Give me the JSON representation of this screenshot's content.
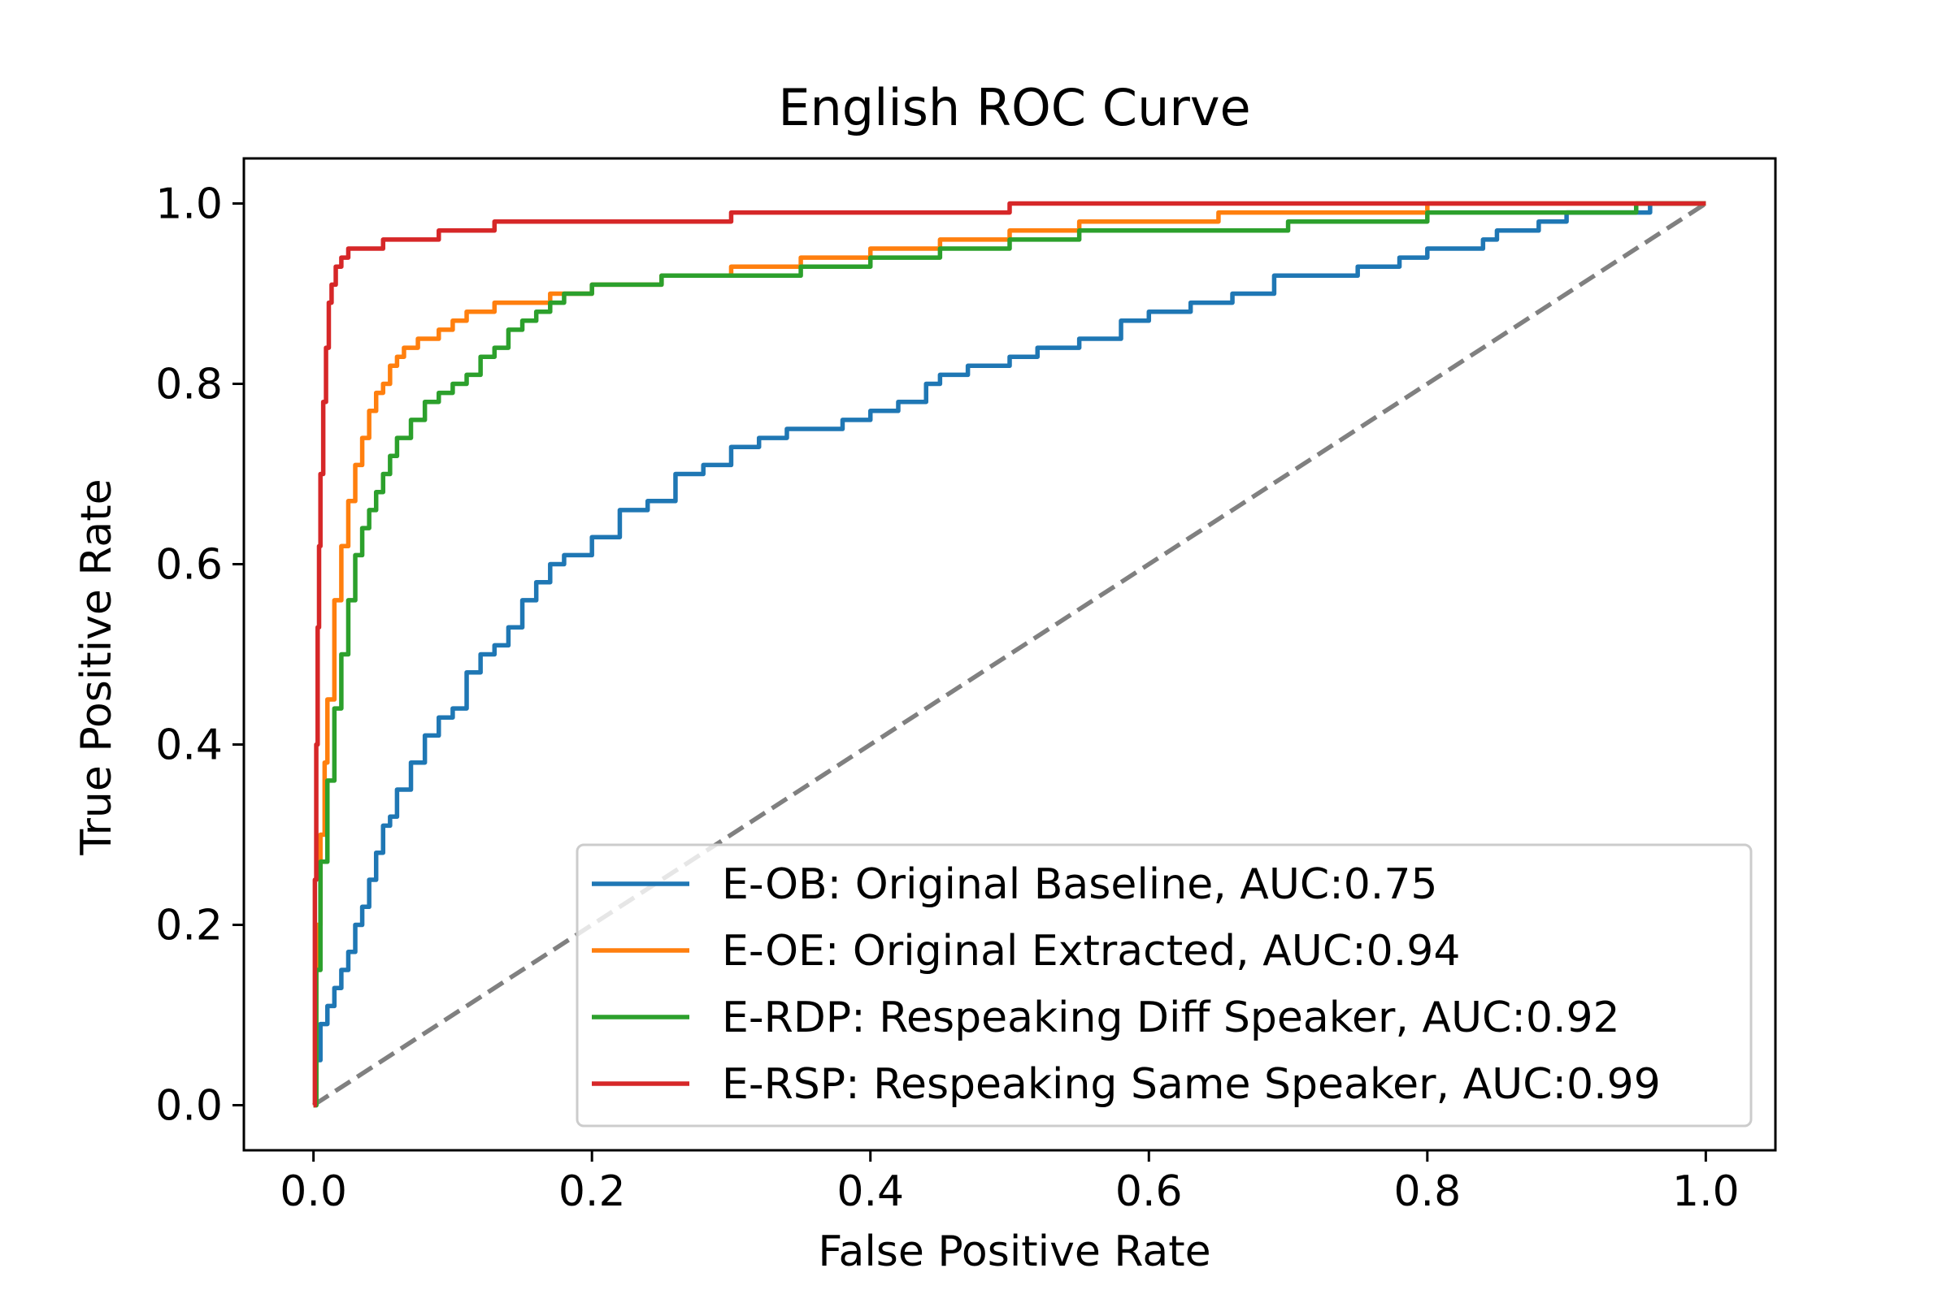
{
  "chart_data": {
    "type": "line",
    "title": "English ROC Curve",
    "xlabel": "False Positive Rate",
    "ylabel": "True Positive Rate",
    "xlim": [
      -0.05,
      1.05
    ],
    "ylim": [
      -0.05,
      1.05
    ],
    "xticks": [
      "0.0",
      "0.2",
      "0.4",
      "0.6",
      "0.8",
      "1.0"
    ],
    "yticks": [
      "0.0",
      "0.2",
      "0.4",
      "0.6",
      "0.8",
      "1.0"
    ],
    "grid": false,
    "legend_position": "lower-right",
    "diagonal": {
      "x": [
        0,
        1
      ],
      "y": [
        0,
        1
      ],
      "color": "#808080",
      "style": "dashed"
    },
    "series": [
      {
        "name": "E-OB: Original Baseline, AUC:0.75",
        "color": "#1f77b4",
        "x": [
          0.0,
          0.002,
          0.005,
          0.01,
          0.015,
          0.02,
          0.025,
          0.03,
          0.035,
          0.04,
          0.045,
          0.05,
          0.055,
          0.06,
          0.07,
          0.08,
          0.09,
          0.1,
          0.11,
          0.12,
          0.13,
          0.14,
          0.15,
          0.16,
          0.17,
          0.18,
          0.2,
          0.22,
          0.24,
          0.26,
          0.28,
          0.3,
          0.32,
          0.34,
          0.36,
          0.38,
          0.4,
          0.42,
          0.44,
          0.45,
          0.47,
          0.5,
          0.52,
          0.55,
          0.58,
          0.6,
          0.63,
          0.66,
          0.69,
          0.72,
          0.75,
          0.78,
          0.8,
          0.82,
          0.84,
          0.85,
          0.88,
          0.9,
          0.93,
          0.96,
          1.0
        ],
        "y": [
          0.0,
          0.05,
          0.09,
          0.11,
          0.13,
          0.15,
          0.17,
          0.2,
          0.22,
          0.25,
          0.28,
          0.31,
          0.32,
          0.35,
          0.38,
          0.41,
          0.43,
          0.44,
          0.48,
          0.5,
          0.51,
          0.53,
          0.56,
          0.58,
          0.6,
          0.61,
          0.63,
          0.66,
          0.67,
          0.7,
          0.71,
          0.73,
          0.74,
          0.75,
          0.75,
          0.76,
          0.77,
          0.78,
          0.8,
          0.81,
          0.82,
          0.83,
          0.84,
          0.85,
          0.87,
          0.88,
          0.89,
          0.9,
          0.92,
          0.92,
          0.93,
          0.94,
          0.95,
          0.95,
          0.96,
          0.97,
          0.98,
          0.99,
          0.99,
          1.0,
          1.0
        ]
      },
      {
        "name": "E-OE: Original Extracted, AUC:0.94",
        "color": "#ff7f0e",
        "x": [
          0.0,
          0.002,
          0.005,
          0.008,
          0.01,
          0.015,
          0.02,
          0.025,
          0.03,
          0.035,
          0.04,
          0.045,
          0.05,
          0.055,
          0.06,
          0.065,
          0.07,
          0.075,
          0.08,
          0.09,
          0.1,
          0.11,
          0.12,
          0.13,
          0.15,
          0.17,
          0.2,
          0.25,
          0.3,
          0.35,
          0.4,
          0.45,
          0.5,
          0.55,
          0.6,
          0.65,
          0.7,
          0.8,
          0.9,
          1.0
        ],
        "y": [
          0.0,
          0.2,
          0.3,
          0.38,
          0.45,
          0.56,
          0.62,
          0.67,
          0.71,
          0.74,
          0.77,
          0.79,
          0.8,
          0.82,
          0.83,
          0.84,
          0.84,
          0.85,
          0.85,
          0.86,
          0.87,
          0.88,
          0.88,
          0.89,
          0.89,
          0.9,
          0.91,
          0.92,
          0.93,
          0.94,
          0.95,
          0.96,
          0.97,
          0.98,
          0.98,
          0.99,
          0.99,
          1.0,
          1.0,
          1.0
        ]
      },
      {
        "name": "E-RDP: Respeaking Diff Speaker, AUC:0.92",
        "color": "#2ca02c",
        "x": [
          0.0,
          0.002,
          0.005,
          0.01,
          0.015,
          0.02,
          0.025,
          0.03,
          0.035,
          0.04,
          0.045,
          0.05,
          0.055,
          0.06,
          0.07,
          0.08,
          0.09,
          0.1,
          0.11,
          0.12,
          0.13,
          0.14,
          0.15,
          0.16,
          0.17,
          0.18,
          0.2,
          0.25,
          0.3,
          0.35,
          0.4,
          0.45,
          0.5,
          0.55,
          0.6,
          0.7,
          0.8,
          0.9,
          0.95,
          1.0
        ],
        "y": [
          0.0,
          0.15,
          0.27,
          0.36,
          0.44,
          0.5,
          0.56,
          0.61,
          0.64,
          0.66,
          0.68,
          0.7,
          0.72,
          0.74,
          0.76,
          0.78,
          0.79,
          0.8,
          0.81,
          0.83,
          0.84,
          0.86,
          0.87,
          0.88,
          0.89,
          0.9,
          0.91,
          0.92,
          0.92,
          0.93,
          0.94,
          0.95,
          0.96,
          0.97,
          0.97,
          0.98,
          0.99,
          0.99,
          1.0,
          1.0
        ]
      },
      {
        "name": "E-RSP: Respeaking Same Speaker, AUC:0.99",
        "color": "#d62728",
        "x": [
          0.0,
          0.001,
          0.002,
          0.003,
          0.004,
          0.005,
          0.007,
          0.009,
          0.011,
          0.013,
          0.016,
          0.02,
          0.025,
          0.03,
          0.05,
          0.07,
          0.09,
          0.1,
          0.13,
          0.2,
          0.3,
          0.4,
          0.5,
          0.6,
          0.7,
          0.8,
          0.9,
          1.0
        ],
        "y": [
          0.0,
          0.25,
          0.4,
          0.53,
          0.62,
          0.7,
          0.78,
          0.84,
          0.89,
          0.91,
          0.93,
          0.94,
          0.95,
          0.95,
          0.96,
          0.96,
          0.97,
          0.97,
          0.98,
          0.98,
          0.99,
          0.99,
          1.0,
          1.0,
          1.0,
          1.0,
          1.0,
          1.0
        ]
      }
    ]
  }
}
